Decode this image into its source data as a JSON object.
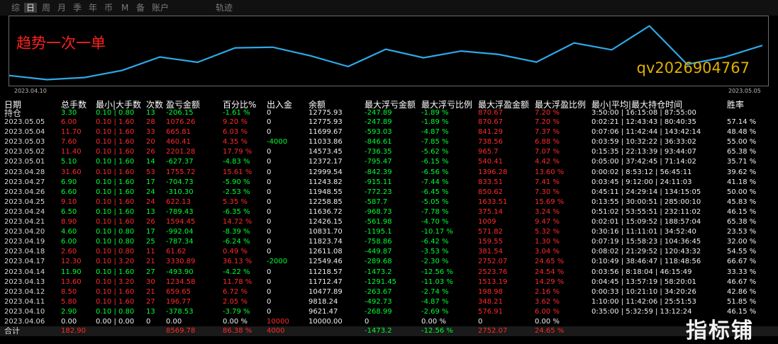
{
  "tabs": [
    "综",
    "日",
    "周",
    "月",
    "季",
    "年",
    "币",
    "M",
    "备",
    "账户",
    "轨迹"
  ],
  "active_tab": 1,
  "chart": {
    "title": "趋势一次一单",
    "contact": "qv2026904767",
    "start_label": "2023.04.10",
    "end_label": "2023.05.05",
    "line_color": "#2fa8e8",
    "series_balance": [
      10000,
      9621.47,
      9818.24,
      10477.89,
      11712.47,
      11218.57,
      12549.46,
      12611.08,
      11823.74,
      10831.7,
      12426.15,
      11636.72,
      12258.85,
      11948.55,
      11243.82,
      12999.54,
      12372.17,
      14573.45,
      11033.86,
      11699.67,
      12775.93
    ]
  },
  "headers": [
    "日期",
    "总手数",
    "最小|大手数",
    "次数",
    "盈亏金额",
    "百分比%",
    "出入金",
    "余额",
    "最大浮亏金额",
    "最大浮亏比例",
    "最大浮盈金额",
    "最大浮盈比例",
    "最小|平均|最大持仓时间",
    "胜率"
  ],
  "hold_row": {
    "date": "持仓",
    "lots": "3.30",
    "minmax": "0.10 | 0.80",
    "count": "13",
    "pnl": "-206.15",
    "pct": "-1.61 %",
    "io": "0",
    "balance": "12775.93",
    "mfl": "-247.89",
    "mflp": "-1.89 %",
    "mfp": "870.67",
    "mfpp": "7.20 %",
    "hold": "3:50:00 | 16:15:08 | 87:55:00",
    "win": ""
  },
  "rows": [
    {
      "date": "2023.05.05",
      "lots": "6.00",
      "minmax": "0.10 | 1.60",
      "count": "28",
      "pnl": "1076.26",
      "pct": "9.20 %",
      "io": "0",
      "balance": "12775.93",
      "mfl": "-247.89",
      "mflp": "-1.89 %",
      "mfp": "870.67",
      "mfpp": "7.20 %",
      "hold": "0:02:21 | 12:43:43 | 80:40:35",
      "win": "57.14 %"
    },
    {
      "date": "2023.05.04",
      "lots": "11.70",
      "minmax": "0.10 | 1.60",
      "count": "33",
      "pnl": "665.81",
      "pct": "6.03 %",
      "io": "0",
      "balance": "11699.67",
      "mfl": "-593.03",
      "mflp": "-4.87 %",
      "mfp": "841.29",
      "mfpp": "7.37 %",
      "hold": "0:07:06 | 11:42:44 | 143:42:14",
      "win": "48.48 %"
    },
    {
      "date": "2023.05.03",
      "lots": "7.60",
      "minmax": "0.10 | 1.60",
      "count": "20",
      "pnl": "460.41",
      "pct": "4.35 %",
      "io": "-4000",
      "balance": "11033.86",
      "mfl": "-846.61",
      "mflp": "-7.85 %",
      "mfp": "738.56",
      "mfpp": "6.88 %",
      "hold": "0:03:59 | 10:32:22 | 36:33:02",
      "win": "55.00 %"
    },
    {
      "date": "2023.05.02",
      "lots": "11.40",
      "minmax": "0.10 | 1.60",
      "count": "26",
      "pnl": "2201.28",
      "pct": "17.79 %",
      "io": "0",
      "balance": "14573.45",
      "mfl": "-736.35",
      "mflp": "-5.62 %",
      "mfp": "965.7",
      "mfpp": "7.07 %",
      "hold": "0:15:35 | 22:13:39 | 93:44:07",
      "win": "65.38 %"
    },
    {
      "date": "2023.05.01",
      "lots": "5.10",
      "minmax": "0.10 | 1.60",
      "count": "14",
      "pnl": "-627.37",
      "pct": "-4.83 %",
      "io": "0",
      "balance": "12372.17",
      "mfl": "-795.47",
      "mflp": "-6.15 %",
      "mfp": "540.41",
      "mfpp": "4.42 %",
      "hold": "0:05:00 | 37:42:45 | 71:14:02",
      "win": "35.71 %"
    },
    {
      "date": "2023.04.28",
      "lots": "31.60",
      "minmax": "0.10 | 1.60",
      "count": "53",
      "pnl": "1755.72",
      "pct": "15.61 %",
      "io": "0",
      "balance": "12999.54",
      "mfl": "-842.39",
      "mflp": "-6.56 %",
      "mfp": "1396.28",
      "mfpp": "13.60 %",
      "hold": "0:00:02 | 8:53:12 | 56:45:11",
      "win": "39.62 %"
    },
    {
      "date": "2023.04.27",
      "lots": "6.90",
      "minmax": "0.10 | 1.60",
      "count": "17",
      "pnl": "-704.73",
      "pct": "-5.90 %",
      "io": "0",
      "balance": "11243.82",
      "mfl": "-915.11",
      "mflp": "-7.44 %",
      "mfp": "833.51",
      "mfpp": "7.41 %",
      "hold": "0:03:45 | 9:12:00 | 24:11:03",
      "win": "41.18 %"
    },
    {
      "date": "2023.04.26",
      "lots": "6.60",
      "minmax": "0.10 | 1.60",
      "count": "24",
      "pnl": "-310.30",
      "pct": "-2.53 %",
      "io": "0",
      "balance": "11948.55",
      "mfl": "-772.23",
      "mflp": "-6.45 %",
      "mfp": "850.62",
      "mfpp": "7.30 %",
      "hold": "0:45:11 | 24:29:14 | 134:15:05",
      "win": "50.00 %"
    },
    {
      "date": "2023.04.25",
      "lots": "9.10",
      "minmax": "0.10 | 1.60",
      "count": "24",
      "pnl": "622.13",
      "pct": "5.35 %",
      "io": "0",
      "balance": "12258.85",
      "mfl": "-587.7",
      "mflp": "-5.05 %",
      "mfp": "1633.51",
      "mfpp": "15.69 %",
      "hold": "0:13:55 | 30:00:51 | 285:00:10",
      "win": "45.83 %"
    },
    {
      "date": "2023.04.24",
      "lots": "6.50",
      "minmax": "0.10 | 1.60",
      "count": "13",
      "pnl": "-789.43",
      "pct": "-6.35 %",
      "io": "0",
      "balance": "11636.72",
      "mfl": "-968.73",
      "mflp": "-7.78 %",
      "mfp": "375.14",
      "mfpp": "3.24 %",
      "hold": "0:51:02 | 53:55:51 | 232:11:02",
      "win": "46.15 %"
    },
    {
      "date": "2023.04.21",
      "lots": "8.90",
      "minmax": "0.10 | 1.60",
      "count": "26",
      "pnl": "1594.45",
      "pct": "14.72 %",
      "io": "0",
      "balance": "12426.15",
      "mfl": "-561.98",
      "mflp": "-4.70 %",
      "mfp": "1009",
      "mfpp": "9.47 %",
      "hold": "0:02:01 | 15:09:52 | 188:57:04",
      "win": "65.38 %"
    },
    {
      "date": "2023.04.20",
      "lots": "4.60",
      "minmax": "0.10 | 0.80",
      "count": "17",
      "pnl": "-992.04",
      "pct": "-8.39 %",
      "io": "0",
      "balance": "10831.70",
      "mfl": "-1195.1",
      "mflp": "-10.17 %",
      "mfp": "571.82",
      "mfpp": "5.32 %",
      "hold": "0:30:16 | 11:11:01 | 34:52:40",
      "win": "23.53 %"
    },
    {
      "date": "2023.04.19",
      "lots": "6.00",
      "minmax": "0.10 | 0.80",
      "count": "25",
      "pnl": "-787.34",
      "pct": "-6.24 %",
      "io": "0",
      "balance": "11823.74",
      "mfl": "-758.86",
      "mflp": "-6.42 %",
      "mfp": "159.55",
      "mfpp": "1.30 %",
      "hold": "0:07:19 | 15:58:23 | 104:36:45",
      "win": "32.00 %"
    },
    {
      "date": "2023.04.18",
      "lots": "2.60",
      "minmax": "0.10 | 0.80",
      "count": "11",
      "pnl": "61.62",
      "pct": "0.49 %",
      "io": "0",
      "balance": "12611.08",
      "mfl": "-449.87",
      "mflp": "-3.53 %",
      "mfp": "381.54",
      "mfpp": "3.04 %",
      "hold": "0:08:02 | 21:29:52 | 120:43:32",
      "win": "54.55 %"
    },
    {
      "date": "2023.04.17",
      "lots": "12.30",
      "minmax": "0.10 | 3.20",
      "count": "21",
      "pnl": "3330.89",
      "pct": "36.13 %",
      "io": "-2000",
      "balance": "12549.46",
      "mfl": "-289.68",
      "mflp": "-2.30 %",
      "mfp": "2752.07",
      "mfpp": "24.65 %",
      "hold": "0:10:49 | 38:46:47 | 118:48:56",
      "win": "66.67 %"
    },
    {
      "date": "2023.04.14",
      "lots": "11.90",
      "minmax": "0.10 | 1.60",
      "count": "27",
      "pnl": "-493.90",
      "pct": "-4.22 %",
      "io": "0",
      "balance": "11218.57",
      "mfl": "-1473.2",
      "mflp": "-12.56 %",
      "mfp": "2523.76",
      "mfpp": "24.54 %",
      "hold": "0:03:56 | 8:18:04 | 46:15:49",
      "win": "33.33 %"
    },
    {
      "date": "2023.04.13",
      "lots": "13.60",
      "minmax": "0.10 | 3.20",
      "count": "30",
      "pnl": "1234.58",
      "pct": "11.78 %",
      "io": "0",
      "balance": "11712.47",
      "mfl": "-1291.45",
      "mflp": "-11.03 %",
      "mfp": "1513.19",
      "mfpp": "14.29 %",
      "hold": "0:04:45 | 13:57:19 | 58:20:01",
      "win": "46.67 %"
    },
    {
      "date": "2023.04.12",
      "lots": "8.50",
      "minmax": "0.10 | 1.60",
      "count": "21",
      "pnl": "659.65",
      "pct": "6.72 %",
      "io": "0",
      "balance": "10477.89",
      "mfl": "-263.67",
      "mflp": "-2.74 %",
      "mfp": "198.98",
      "mfpp": "2.16 %",
      "hold": "0:00:33 | 10:21:10 | 34:20:26",
      "win": "42.86 %"
    },
    {
      "date": "2023.04.11",
      "lots": "5.80",
      "minmax": "0.10 | 1.60",
      "count": "27",
      "pnl": "196.77",
      "pct": "2.05 %",
      "io": "0",
      "balance": "9818.24",
      "mfl": "-492.73",
      "mflp": "-4.87 %",
      "mfp": "348.21",
      "mfpp": "3.62 %",
      "hold": "1:10:00 | 11:42:06 | 25:51:53",
      "win": "51.85 %"
    },
    {
      "date": "2023.04.10",
      "lots": "2.90",
      "minmax": "0.10 | 0.80",
      "count": "13",
      "pnl": "-378.53",
      "pct": "-3.79 %",
      "io": "0",
      "balance": "9621.47",
      "mfl": "-268.99",
      "mflp": "-2.69 %",
      "mfp": "576.91",
      "mfpp": "6.00 %",
      "hold": "0:35:00 | 5:32:59 | 13:12:24",
      "win": "46.15 %"
    },
    {
      "date": "2023.04.06",
      "lots": "0.00",
      "minmax": "0.00 | 0.00",
      "count": "0",
      "pnl": "0.00",
      "pct": "0.00 %",
      "io": "10000",
      "balance": "10000.00",
      "mfl": "0",
      "mflp": "0.00 %",
      "mfp": "0",
      "mfpp": "0.00 %",
      "hold": "",
      "win": ""
    }
  ],
  "total": {
    "date": "合计",
    "lots": "182.90",
    "pnl": "8569.78",
    "pct": "86.38 %",
    "io": "4000",
    "mfl": "-1473.2",
    "mflp": "-12.56 %",
    "mfp": "2752.07",
    "mfpp": "24.65 %"
  },
  "watermark": "指标铺"
}
